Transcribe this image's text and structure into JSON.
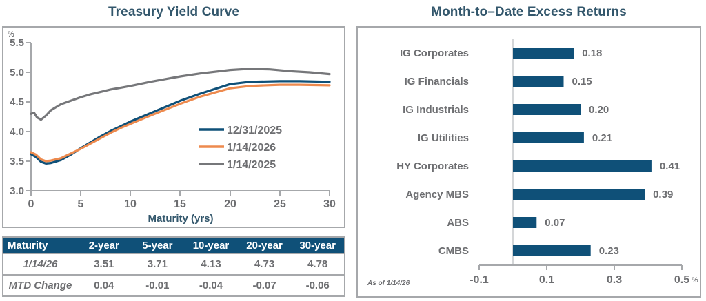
{
  "colors": {
    "title": "#33576C",
    "frame_axis": "#A6A8AB",
    "tick_text": "#6D6E71",
    "blue": "#0F5078",
    "orange": "#ED8A4E",
    "gray": "#76777A",
    "zero_line": "#D4D6D8",
    "table_header_bg": "#0F5078",
    "table_header_text": "#FFFFFF"
  },
  "left_chart": {
    "title": "Treasury Yield Curve",
    "y_unit": "%",
    "x_label": "Maturity (yrs)",
    "y_ticks": [
      "5.5",
      "5.0",
      "4.5",
      "4.0",
      "3.5",
      "3.0"
    ],
    "x_ticks": [
      "0",
      "5",
      "10",
      "15",
      "20",
      "25",
      "30"
    ]
  },
  "right_chart": {
    "title": "Month-to–Date Excess Returns",
    "x_ticks": [
      "-0.1",
      "0.1",
      "0.3",
      "0.5"
    ],
    "unit": "%",
    "note": "As of 1/14/26"
  },
  "chart_data": [
    {
      "type": "line",
      "title": "Treasury Yield Curve",
      "xlabel": "Maturity (yrs)",
      "ylabel": "%",
      "xlim": [
        0,
        30
      ],
      "ylim": [
        3.0,
        5.5
      ],
      "grid": false,
      "legend_position": "inside-right",
      "series": [
        {
          "name": "12/31/2025",
          "color": "#0F5078",
          "points": [
            [
              0,
              3.62
            ],
            [
              0.5,
              3.57
            ],
            [
              1,
              3.49
            ],
            [
              1.5,
              3.46
            ],
            [
              2,
              3.47
            ],
            [
              3,
              3.52
            ],
            [
              4,
              3.61
            ],
            [
              5,
              3.72
            ],
            [
              6,
              3.82
            ],
            [
              7,
              3.92
            ],
            [
              8,
              4.01
            ],
            [
              9,
              4.09
            ],
            [
              10,
              4.17
            ],
            [
              12,
              4.31
            ],
            [
              15,
              4.52
            ],
            [
              17,
              4.64
            ],
            [
              20,
              4.8
            ],
            [
              22,
              4.84
            ],
            [
              25,
              4.85
            ],
            [
              27,
              4.85
            ],
            [
              30,
              4.84
            ]
          ]
        },
        {
          "name": "1/14/2026",
          "color": "#ED8A4E",
          "points": [
            [
              0,
              3.65
            ],
            [
              0.5,
              3.61
            ],
            [
              1,
              3.53
            ],
            [
              1.5,
              3.5
            ],
            [
              2,
              3.51
            ],
            [
              3,
              3.55
            ],
            [
              4,
              3.63
            ],
            [
              5,
              3.71
            ],
            [
              6,
              3.8
            ],
            [
              7,
              3.89
            ],
            [
              8,
              3.98
            ],
            [
              9,
              4.06
            ],
            [
              10,
              4.13
            ],
            [
              12,
              4.27
            ],
            [
              15,
              4.47
            ],
            [
              17,
              4.59
            ],
            [
              20,
              4.73
            ],
            [
              22,
              4.77
            ],
            [
              25,
              4.79
            ],
            [
              27,
              4.79
            ],
            [
              30,
              4.78
            ]
          ]
        },
        {
          "name": "1/14/2025",
          "color": "#76777A",
          "points": [
            [
              0,
              4.3
            ],
            [
              0.3,
              4.32
            ],
            [
              0.6,
              4.24
            ],
            [
              1,
              4.2
            ],
            [
              1.5,
              4.27
            ],
            [
              2,
              4.36
            ],
            [
              3,
              4.46
            ],
            [
              4,
              4.52
            ],
            [
              5,
              4.58
            ],
            [
              6,
              4.63
            ],
            [
              7,
              4.67
            ],
            [
              8,
              4.71
            ],
            [
              9,
              4.74
            ],
            [
              10,
              4.77
            ],
            [
              12,
              4.84
            ],
            [
              15,
              4.93
            ],
            [
              17,
              4.98
            ],
            [
              20,
              5.04
            ],
            [
              22,
              5.06
            ],
            [
              24,
              5.05
            ],
            [
              26,
              5.02
            ],
            [
              28,
              5.0
            ],
            [
              30,
              4.97
            ]
          ]
        }
      ]
    },
    {
      "type": "bar",
      "orientation": "horizontal",
      "title": "Month-to–Date Excess Returns",
      "categories": [
        "IG Corporates",
        "IG Financials",
        "IG Industrials",
        "IG Utilities",
        "HY Corporates",
        "Agency MBS",
        "ABS",
        "CMBS"
      ],
      "values": [
        0.18,
        0.15,
        0.2,
        0.21,
        0.41,
        0.39,
        0.07,
        0.23
      ],
      "value_labels": [
        "0.18",
        "0.15",
        "0.20",
        "0.21",
        "0.41",
        "0.39",
        "0.07",
        "0.23"
      ],
      "xlim": [
        -0.1,
        0.5
      ],
      "x_tick_values": [
        -0.1,
        0.1,
        0.3,
        0.5
      ],
      "unit": "%",
      "bar_color": "#0F5078",
      "note": "As of 1/14/26"
    }
  ],
  "table": {
    "header": [
      "Maturity",
      "2-year",
      "5-year",
      "10-year",
      "20-year",
      "30-year"
    ],
    "rows": [
      {
        "label": "1/14/26",
        "values": [
          "3.51",
          "3.71",
          "4.13",
          "4.73",
          "4.78"
        ]
      },
      {
        "label": "MTD Change",
        "values": [
          "0.04",
          "-0.01",
          "-0.04",
          "-0.07",
          "-0.06"
        ]
      }
    ]
  }
}
